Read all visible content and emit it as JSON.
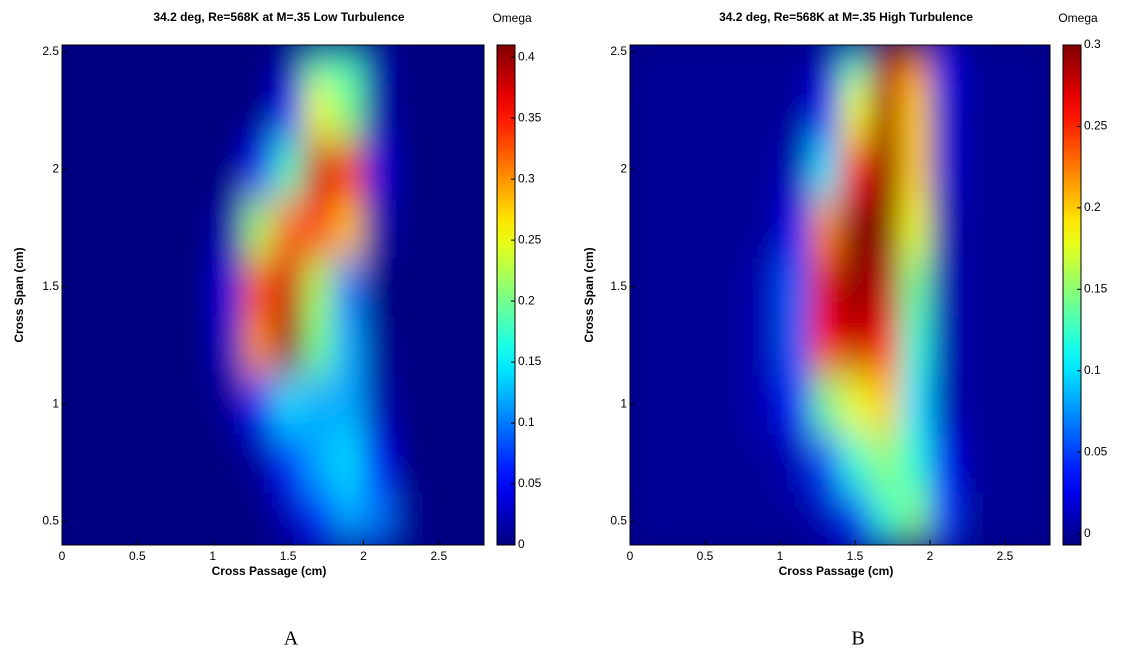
{
  "chart_data": [
    {
      "type": "heatmap",
      "title": "34.2 deg, Re=568K at M=.35 Low Turbulence",
      "x_label": "Cross Passage (cm)",
      "y_label": "Cross Span (cm)",
      "colorbar_label": "Omega",
      "caption": "A",
      "colormap": "jet",
      "x": [
        0.1,
        0.3,
        0.5,
        0.7,
        0.9,
        1.1,
        1.3,
        1.5,
        1.7,
        1.9,
        2.1,
        2.3,
        2.5,
        2.7
      ],
      "y": [
        0.5,
        0.75,
        1.0,
        1.25,
        1.5,
        1.75,
        2.0,
        2.25,
        2.5
      ],
      "z": [
        [
          0,
          0,
          0,
          0,
          0,
          0,
          0,
          0.02,
          0.06,
          0.12,
          0.1,
          0.01,
          0,
          0
        ],
        [
          0,
          0,
          0,
          0,
          0,
          0,
          0.01,
          0.06,
          0.12,
          0.14,
          0.05,
          0,
          0,
          0
        ],
        [
          0,
          0,
          0,
          0,
          0,
          0.01,
          0.06,
          0.14,
          0.12,
          0.12,
          0.02,
          0,
          0,
          0
        ],
        [
          0,
          0,
          0,
          0,
          0,
          0.03,
          0.3,
          0.4,
          0.2,
          0.12,
          0.01,
          0,
          0,
          0
        ],
        [
          0,
          0,
          0,
          0,
          0,
          0.04,
          0.33,
          0.38,
          0.22,
          0.1,
          0,
          0,
          0,
          0
        ],
        [
          0,
          0,
          0,
          0,
          0,
          0.02,
          0.22,
          0.32,
          0.34,
          0.28,
          0.02,
          0,
          0,
          0
        ],
        [
          0,
          0,
          0,
          0,
          0,
          0,
          0.05,
          0.18,
          0.38,
          0.36,
          0.04,
          0,
          0,
          0
        ],
        [
          0,
          0,
          0,
          0,
          0,
          0,
          0,
          0.05,
          0.25,
          0.2,
          0.02,
          0,
          0,
          0
        ],
        [
          0,
          0,
          0,
          0,
          0,
          0,
          0,
          0.01,
          0.18,
          0.18,
          0.02,
          0,
          0,
          0
        ]
      ],
      "xlim": [
        0,
        2.8
      ],
      "xticks": [
        0,
        0.5,
        1,
        1.5,
        2,
        2.5
      ],
      "ylim": [
        0.4,
        2.53
      ],
      "yticks": [
        0.5,
        1,
        1.5,
        2,
        2.5
      ],
      "clim": [
        0,
        0.41
      ],
      "cticks": [
        0,
        0.05,
        0.1,
        0.15,
        0.2,
        0.25,
        0.3,
        0.35,
        0.4
      ]
    },
    {
      "type": "heatmap",
      "title": "34.2 deg, Re=568K at M=.35 High Turbulence",
      "x_label": "Cross Passage (cm)",
      "y_label": "Cross Span (cm)",
      "colorbar_label": "Omega",
      "caption": "B",
      "colormap": "jet",
      "x": [
        0.1,
        0.3,
        0.5,
        0.7,
        0.9,
        1.1,
        1.3,
        1.5,
        1.7,
        1.9,
        2.1,
        2.3,
        2.5,
        2.7
      ],
      "y": [
        0.5,
        0.75,
        1.0,
        1.25,
        1.5,
        1.75,
        2.0,
        2.25,
        2.5
      ],
      "z": [
        [
          0,
          0,
          0,
          0,
          0,
          0,
          0.01,
          0.04,
          0.12,
          0.15,
          0.05,
          0,
          0,
          0
        ],
        [
          0,
          0,
          0,
          0,
          0,
          0.01,
          0.05,
          0.12,
          0.15,
          0.12,
          0.03,
          0,
          0,
          0
        ],
        [
          0,
          0,
          0,
          0,
          0.01,
          0.04,
          0.14,
          0.18,
          0.2,
          0.1,
          0.01,
          0,
          0,
          0
        ],
        [
          0,
          0,
          0,
          0,
          0.01,
          0.06,
          0.26,
          0.28,
          0.26,
          0.12,
          0.01,
          0,
          0,
          0
        ],
        [
          0,
          0,
          0,
          0,
          0.01,
          0.06,
          0.27,
          0.3,
          0.28,
          0.14,
          0.01,
          0,
          0,
          0
        ],
        [
          0,
          0,
          0,
          0,
          0,
          0.03,
          0.22,
          0.3,
          0.3,
          0.18,
          0.01,
          0,
          0,
          0
        ],
        [
          0,
          0,
          0,
          0,
          0,
          0.01,
          0.1,
          0.26,
          0.3,
          0.2,
          0.02,
          0,
          0,
          0
        ],
        [
          0,
          0,
          0,
          0,
          0,
          0,
          0.03,
          0.18,
          0.29,
          0.2,
          0.02,
          0,
          0,
          0
        ],
        [
          0,
          0,
          0,
          0,
          0,
          0,
          0.01,
          0.12,
          0.28,
          0.22,
          0.03,
          0,
          0,
          0
        ]
      ],
      "xlim": [
        0,
        2.8
      ],
      "xticks": [
        0,
        0.5,
        1,
        1.5,
        2,
        2.5
      ],
      "ylim": [
        0.4,
        2.53
      ],
      "yticks": [
        0.5,
        1,
        1.5,
        2,
        2.5
      ],
      "clim": [
        -0.007,
        0.3
      ],
      "cticks": [
        0,
        0.05,
        0.1,
        0.15,
        0.2,
        0.25,
        0.3
      ]
    }
  ]
}
